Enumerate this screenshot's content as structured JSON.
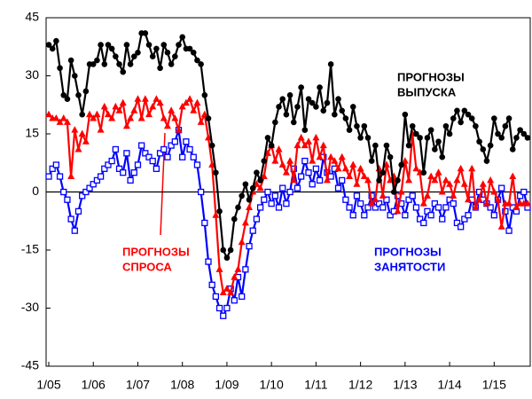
{
  "chart_data": {
    "type": "line",
    "categories": [
      "1/05",
      null,
      null,
      null,
      null,
      null,
      null,
      null,
      null,
      null,
      null,
      null,
      "1/06",
      null,
      null,
      null,
      null,
      null,
      null,
      null,
      null,
      null,
      null,
      null,
      "1/07",
      null,
      null,
      null,
      null,
      null,
      null,
      null,
      null,
      null,
      null,
      null,
      "1/08",
      null,
      null,
      null,
      null,
      null,
      null,
      null,
      null,
      null,
      null,
      null,
      "1/09",
      null,
      null,
      null,
      null,
      null,
      null,
      null,
      null,
      null,
      null,
      null,
      "1/10",
      null,
      null,
      null,
      null,
      null,
      null,
      null,
      null,
      null,
      null,
      null,
      "1/11",
      null,
      null,
      null,
      null,
      null,
      null,
      null,
      null,
      null,
      null,
      null,
      "1/12",
      null,
      null,
      null,
      null,
      null,
      null,
      null,
      null,
      null,
      null,
      null,
      "1/13",
      null,
      null,
      null,
      null,
      null,
      null,
      null,
      null,
      null,
      null,
      null,
      "1/14",
      null,
      null,
      null,
      null,
      null,
      null,
      null,
      null,
      null,
      null,
      null,
      "1/15",
      null,
      null,
      null,
      null,
      null,
      null,
      null,
      null,
      null
    ],
    "series": [
      {
        "name": "ПРОГНОЗЫ ВЫПУСКА",
        "color": "#000000",
        "marker": "circle",
        "values": [
          38,
          37,
          39,
          32,
          25,
          24,
          34,
          30,
          25,
          20,
          26,
          33,
          33,
          34,
          38,
          33,
          38,
          37,
          35,
          33,
          31,
          38,
          33,
          35,
          36,
          41,
          41,
          38,
          35,
          37,
          32,
          38,
          36,
          33,
          35,
          38,
          40,
          37,
          37,
          36,
          34,
          33,
          25,
          19,
          12,
          5,
          -5,
          -15,
          -17,
          -15,
          -7,
          -4,
          -1,
          2,
          -2,
          1,
          5,
          3,
          8,
          14,
          12,
          18,
          22,
          24,
          20,
          25,
          18,
          22,
          27,
          16,
          24,
          23,
          22,
          27,
          21,
          23,
          33,
          20,
          24,
          21,
          19,
          16,
          22,
          17,
          14,
          17,
          14,
          8,
          12,
          3,
          5,
          12,
          9,
          0,
          3,
          7,
          20,
          12,
          17,
          15,
          14,
          5,
          14,
          16,
          11,
          13,
          9,
          17,
          15,
          19,
          21,
          18,
          21,
          20,
          19,
          17,
          13,
          11,
          8,
          12,
          19,
          15,
          14,
          17,
          19,
          11,
          14,
          16,
          15,
          14
        ]
      },
      {
        "name": "ПРОГНОЗЫ СПРОСА",
        "color": "#ff0000",
        "marker": "triangle",
        "values": [
          20,
          19,
          19,
          18,
          19,
          18,
          4,
          16,
          11,
          15,
          13,
          20,
          19,
          20,
          16,
          22,
          20,
          19,
          22,
          21,
          23,
          17,
          19,
          21,
          24,
          19,
          24,
          20,
          22,
          24,
          23,
          19,
          17,
          21,
          19,
          16,
          22,
          23,
          24,
          21,
          23,
          18,
          20,
          14,
          7,
          -6,
          -20,
          -26,
          -25,
          -26,
          -22,
          -20,
          -13,
          -8,
          -4,
          0,
          2,
          1,
          4,
          10,
          12,
          8,
          11,
          7,
          5,
          8,
          3,
          12,
          14,
          12,
          13,
          8,
          14,
          9,
          12,
          3,
          9,
          8,
          6,
          9,
          6,
          4,
          7,
          2,
          6,
          4,
          3,
          -3,
          -2,
          6,
          -1,
          7,
          3,
          4,
          -5,
          0,
          8,
          3,
          15,
          6,
          5,
          -3,
          -1,
          4,
          3,
          5,
          0,
          3,
          2,
          -1,
          3,
          6,
          2,
          -2,
          6,
          -4,
          -2,
          2,
          -3,
          3,
          0,
          -2,
          -9,
          -3,
          -3,
          4,
          -4,
          -3,
          -3,
          -3
        ]
      },
      {
        "name": "ПРОГНОЗЫ ЗАНЯТОСТИ",
        "color": "#0000ff",
        "marker": "square",
        "values": [
          4,
          6,
          7,
          4,
          0,
          -2,
          -7,
          -10,
          -5,
          -1,
          0,
          1,
          2,
          3,
          4,
          6,
          7,
          8,
          11,
          6,
          5,
          10,
          3,
          5,
          7,
          12,
          10,
          9,
          8,
          6,
          10,
          11,
          9,
          12,
          13,
          16,
          9,
          13,
          11,
          9,
          7,
          0,
          -8,
          -18,
          -24,
          -27,
          -30,
          -32,
          -30,
          -25,
          -28,
          -22,
          -27,
          -20,
          -14,
          -10,
          -7,
          -4,
          -2,
          0,
          -3,
          -1,
          -4,
          1,
          -3,
          0,
          6,
          1,
          4,
          8,
          5,
          2,
          6,
          3,
          9,
          5,
          4,
          6,
          1,
          3,
          -2,
          -4,
          -6,
          -1,
          -3,
          -6,
          -4,
          -1,
          -4,
          -3,
          -4,
          -2,
          -6,
          -5,
          -1,
          -3,
          -6,
          -2,
          -1,
          -4,
          -7,
          -8,
          -5,
          -6,
          -3,
          -4,
          -7,
          -4,
          -2,
          -3,
          -8,
          -9,
          -7,
          -6,
          -2,
          -4,
          0,
          -2,
          -3,
          -4,
          -6,
          -2,
          1,
          -5,
          -10,
          -4,
          -5,
          -1,
          0,
          -4
        ]
      }
    ],
    "annotations": [
      {
        "lines": [
          "ПРОГНОЗЫ",
          "ВЫПУСКА"
        ],
        "color": "#000000"
      },
      {
        "lines": [
          "ПРОГНОЗЫ",
          "СПРОСА"
        ],
        "color": "#ff0000"
      },
      {
        "lines": [
          "ПРОГНОЗЫ",
          "ЗАНЯТОСТИ"
        ],
        "color": "#0000ff"
      }
    ],
    "ylim": [
      -45,
      45
    ],
    "yticks": [
      -45,
      -30,
      -15,
      0,
      15,
      30,
      45
    ],
    "grid": false
  }
}
